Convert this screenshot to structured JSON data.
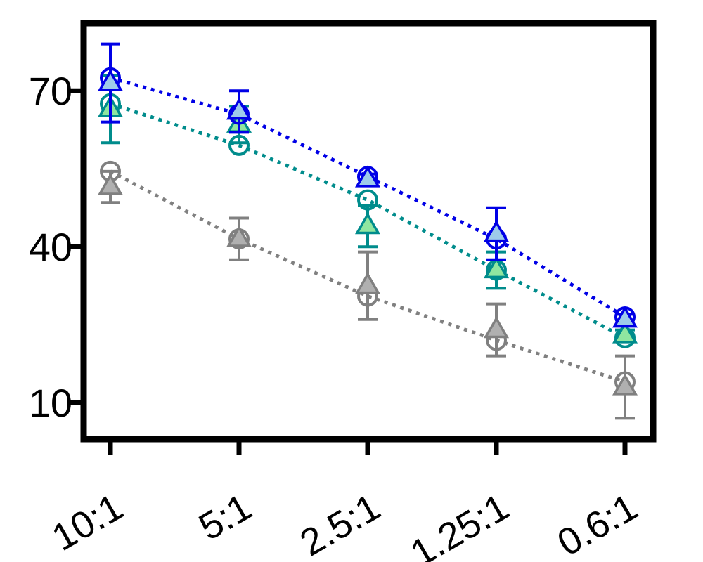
{
  "chart_data": {
    "type": "line",
    "title": "",
    "xlabel": "",
    "ylabel": "",
    "categories": [
      "10:1",
      "5:1",
      "2.5:1",
      "1.25:1",
      "0.6:1"
    ],
    "yticks": [
      10,
      40,
      70
    ],
    "ylim": [
      3,
      83
    ],
    "grid": false,
    "legend": "none",
    "series": [
      {
        "marker": "circle",
        "line": "dotted",
        "color": "#0000e6",
        "fill": "none",
        "values": [
          72.5,
          65.5,
          53.5,
          41.5,
          26.5
        ],
        "err": [
          0,
          0,
          0,
          0,
          0
        ]
      },
      {
        "marker": "triangle",
        "line": "none",
        "color": "#0000e6",
        "fill": "#9ecbea",
        "values": [
          71.5,
          66,
          53,
          42.5,
          26
        ],
        "err": [
          7.5,
          4,
          1,
          5,
          1
        ]
      },
      {
        "marker": "circle",
        "line": "dotted",
        "color": "#008c8c",
        "fill": "none",
        "values": [
          67.5,
          59.5,
          49,
          35.5,
          22.5
        ],
        "err": [
          0,
          0,
          0,
          0,
          0
        ]
      },
      {
        "marker": "triangle",
        "line": "none",
        "color": "#008c8c",
        "fill": "#90e6a0",
        "values": [
          66.5,
          63.5,
          44,
          35.5,
          23
        ],
        "err": [
          6.5,
          3.5,
          4,
          3.5,
          1
        ]
      },
      {
        "marker": "circle",
        "line": "dotted",
        "color": "#808080",
        "fill": "none",
        "values": [
          54.5,
          41.5,
          30.5,
          22,
          14
        ],
        "err": [
          0,
          0,
          0,
          0,
          0
        ]
      },
      {
        "marker": "triangle",
        "line": "none",
        "color": "#808080",
        "fill": "#b0b0b0",
        "values": [
          51.5,
          41.5,
          32.5,
          24,
          13
        ],
        "err": [
          3,
          4,
          6.5,
          5,
          6
        ]
      }
    ]
  }
}
